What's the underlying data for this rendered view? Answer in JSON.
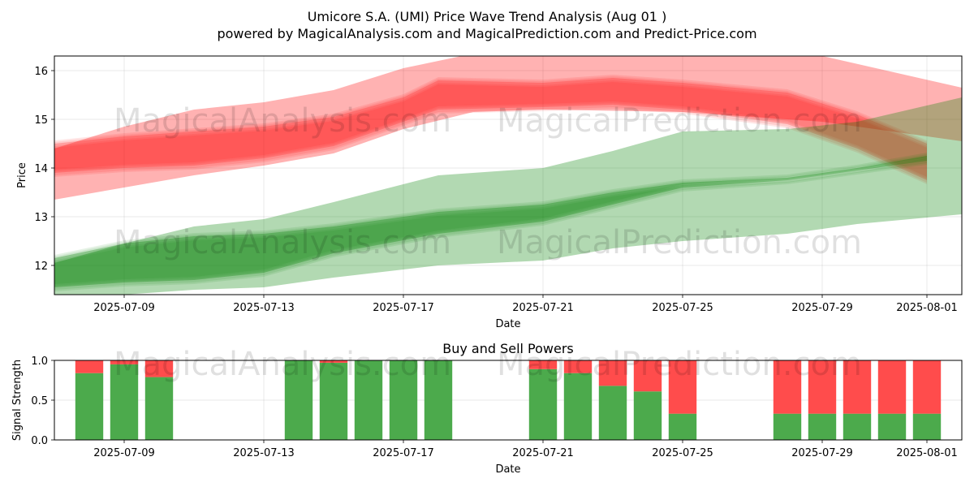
{
  "header": {
    "title": "Umicore S.A. (UMI) Price Wave Trend Analysis (Aug 01 )",
    "subtitle": "powered by MagicalAnalysis.com and MagicalPrediction.com and Predict-Price.com"
  },
  "watermarks": [
    "MagicalAnalysis.com",
    "MagicalPrediction.com"
  ],
  "colors": {
    "sell": "#ff0000",
    "buy": "#008000",
    "sell_bar": "#ff4c4c",
    "buy_bar": "#4caa4c"
  },
  "chart_data": [
    {
      "type": "area",
      "title": "",
      "xlabel": "Date",
      "ylabel": "Price",
      "grid": true,
      "xlim": [
        "2025-07-07",
        "2025-08-02"
      ],
      "ylim": [
        11.4,
        16.3
      ],
      "x_ticks": [
        "2025-07-09",
        "2025-07-13",
        "2025-07-17",
        "2025-07-21",
        "2025-07-25",
        "2025-07-29",
        "2025-08-01"
      ],
      "y_ticks": [
        12,
        13,
        14,
        15,
        16
      ],
      "series": [
        {
          "role": "sell-wide-band",
          "x": [
            "2025-07-07",
            "2025-07-09",
            "2025-07-11",
            "2025-07-13",
            "2025-07-15",
            "2025-07-17",
            "2025-07-19",
            "2025-07-21",
            "2025-07-25",
            "2025-07-29",
            "2025-08-02"
          ],
          "upper": [
            14.4,
            14.85,
            15.2,
            15.35,
            15.6,
            16.05,
            16.35,
            16.4,
            16.4,
            16.3,
            15.65
          ],
          "lower": [
            13.35,
            13.6,
            13.85,
            14.05,
            14.3,
            14.8,
            15.15,
            15.2,
            15.15,
            14.95,
            14.55
          ]
        },
        {
          "role": "sell-core-band",
          "x": [
            "2025-07-07",
            "2025-07-09",
            "2025-07-11",
            "2025-07-13",
            "2025-07-15",
            "2025-07-17",
            "2025-07-18",
            "2025-07-21",
            "2025-07-23",
            "2025-07-25",
            "2025-07-28",
            "2025-07-30",
            "2025-08-01"
          ],
          "upper": [
            14.5,
            14.65,
            14.75,
            14.85,
            15.05,
            15.45,
            15.8,
            15.75,
            15.85,
            15.75,
            15.55,
            15.1,
            14.5
          ],
          "lower": [
            13.9,
            14.0,
            14.05,
            14.2,
            14.45,
            14.95,
            15.2,
            15.25,
            15.3,
            15.2,
            14.9,
            14.4,
            13.75
          ]
        },
        {
          "role": "buy-wide-band",
          "x": [
            "2025-07-07",
            "2025-07-09",
            "2025-07-11",
            "2025-07-13",
            "2025-07-15",
            "2025-07-18",
            "2025-07-21",
            "2025-07-23",
            "2025-07-25",
            "2025-07-28",
            "2025-07-30",
            "2025-08-02"
          ],
          "upper": [
            12.05,
            12.45,
            12.8,
            12.95,
            13.3,
            13.85,
            14.0,
            14.35,
            14.75,
            14.8,
            14.95,
            15.45
          ],
          "lower": [
            11.25,
            11.4,
            11.5,
            11.55,
            11.75,
            12.0,
            12.1,
            12.35,
            12.5,
            12.65,
            12.85,
            13.05
          ]
        },
        {
          "role": "buy-core-band",
          "x": [
            "2025-07-07",
            "2025-07-09",
            "2025-07-11",
            "2025-07-13",
            "2025-07-15",
            "2025-07-18",
            "2025-07-21",
            "2025-07-23",
            "2025-07-25",
            "2025-07-28",
            "2025-07-30",
            "2025-08-01"
          ],
          "upper": [
            12.15,
            12.45,
            12.6,
            12.65,
            12.8,
            13.1,
            13.25,
            13.5,
            13.7,
            13.8,
            14.0,
            14.25
          ],
          "lower": [
            11.55,
            11.65,
            11.7,
            11.85,
            12.25,
            12.65,
            12.9,
            13.25,
            13.6,
            13.75,
            13.95,
            14.15
          ]
        }
      ]
    },
    {
      "type": "bar",
      "title": "Buy and Sell Powers",
      "xlabel": "Date",
      "ylabel": "Signal Strength",
      "grid": true,
      "xlim": [
        "2025-07-07",
        "2025-08-02"
      ],
      "ylim": [
        0,
        1
      ],
      "x_ticks": [
        "2025-07-09",
        "2025-07-13",
        "2025-07-17",
        "2025-07-21",
        "2025-07-25",
        "2025-07-29",
        "2025-08-01"
      ],
      "y_ticks": [
        "0.0",
        "0.5",
        "1.0"
      ],
      "x": [
        "2025-07-08",
        "2025-07-09",
        "2025-07-10",
        "2025-07-14",
        "2025-07-15",
        "2025-07-16",
        "2025-07-17",
        "2025-07-18",
        "2025-07-21",
        "2025-07-22",
        "2025-07-23",
        "2025-07-24",
        "2025-07-25",
        "2025-07-28",
        "2025-07-29",
        "2025-07-30",
        "2025-07-31",
        "2025-08-01"
      ],
      "series": [
        {
          "name": "Buy",
          "values": [
            0.84,
            0.95,
            0.79,
            1.0,
            0.97,
            1.0,
            1.0,
            1.0,
            0.89,
            0.84,
            0.68,
            0.61,
            0.33,
            0.33,
            0.33,
            0.33,
            0.33,
            0.33
          ]
        },
        {
          "name": "Sell",
          "values": [
            0.16,
            0.05,
            0.21,
            0.0,
            0.03,
            0.0,
            0.0,
            0.0,
            0.11,
            0.16,
            0.32,
            0.39,
            0.67,
            0.67,
            0.67,
            0.67,
            0.67,
            0.67
          ]
        }
      ]
    }
  ]
}
